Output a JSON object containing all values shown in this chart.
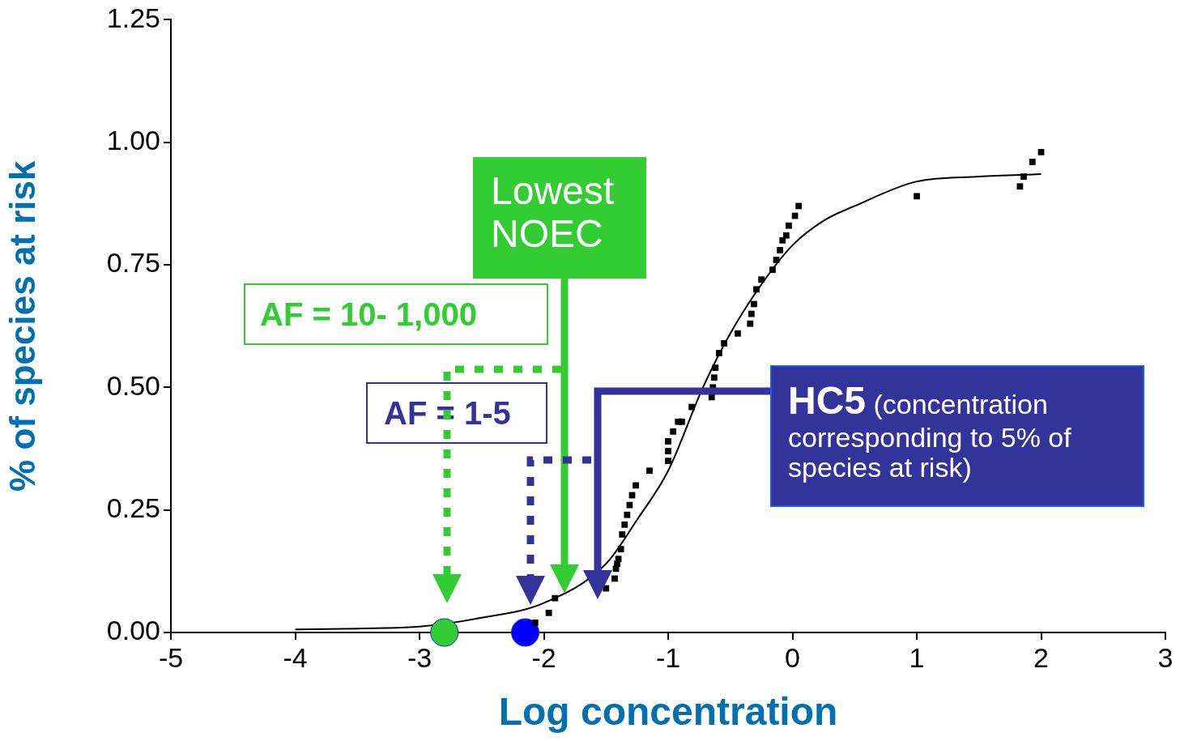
{
  "chart_data": {
    "type": "scatter",
    "xlabel": "Log concentration",
    "ylabel": "% of species at risk",
    "xlim": [
      -5,
      3
    ],
    "xticks": [
      -5,
      -4,
      -3,
      -2,
      -1,
      0,
      1,
      2,
      3
    ],
    "ylim": [
      0,
      1.25
    ],
    "yticks": [
      {
        "value": 0,
        "label": "0.00"
      },
      {
        "value": 0.25,
        "label": "0.25"
      },
      {
        "value": 0.5,
        "label": "0.50"
      },
      {
        "value": 0.75,
        "label": "0.75"
      },
      {
        "value": 1,
        "label": "1.00"
      },
      {
        "value": 1.25,
        "label": "1.25"
      }
    ],
    "grid": false,
    "legend": false,
    "marker": "square",
    "series": [
      {
        "color": "#000000",
        "x": [
          -2.07,
          -1.96,
          -1.91,
          -1.5,
          -1.43,
          -1.42,
          -1.41,
          -1.4,
          -1.38,
          -1.37,
          -1.35,
          -1.33,
          -1.31,
          -1.29,
          -1.26,
          -1.15,
          -1.0,
          -1.0,
          -1.0,
          -0.96,
          -0.92,
          -0.89,
          -0.81,
          -0.65,
          -0.64,
          -0.63,
          -0.62,
          -0.59,
          -0.55,
          -0.44,
          -0.34,
          -0.33,
          -0.31,
          -0.29,
          -0.25,
          -0.16,
          -0.13,
          -0.1,
          -0.08,
          -0.05,
          -0.03,
          0.02,
          0.05,
          1.0,
          1.83,
          1.86,
          1.93,
          2.0
        ],
        "values": [
          0.02,
          0.04,
          0.07,
          0.09,
          0.11,
          0.13,
          0.14,
          0.15,
          0.17,
          0.2,
          0.22,
          0.24,
          0.26,
          0.28,
          0.3,
          0.33,
          0.35,
          0.37,
          0.39,
          0.41,
          0.43,
          0.43,
          0.46,
          0.48,
          0.5,
          0.52,
          0.54,
          0.57,
          0.59,
          0.61,
          0.63,
          0.65,
          0.67,
          0.7,
          0.72,
          0.74,
          0.76,
          0.78,
          0.8,
          0.81,
          0.83,
          0.85,
          0.87,
          0.89,
          0.91,
          0.93,
          0.96,
          0.98
        ]
      },
      {
        "type": "line",
        "color": "#000000",
        "marker": "none",
        "x": [
          -4,
          -3.5,
          -3,
          -2.5,
          -2,
          -1.5,
          -1.25,
          -1,
          -0.72,
          -0.5,
          -0.25,
          0,
          0.25,
          0.5,
          1,
          1.5,
          2
        ],
        "values": [
          0.006,
          0.008,
          0.012,
          0.03,
          0.06,
          0.14,
          0.23,
          0.33,
          0.5,
          0.61,
          0.71,
          0.79,
          0.84,
          0.87,
          0.92,
          0.93,
          0.935
        ]
      },
      {
        "color": "#33cc33",
        "marker": "circle",
        "x": [
          -2.8
        ],
        "values": [
          0
        ]
      },
      {
        "color": "#0000ff",
        "marker": "circle",
        "x": [
          -2.15
        ],
        "values": [
          0
        ]
      }
    ],
    "annotations": [
      "Lowest NOEC",
      "AF = 10- 1,000",
      "AF = 1-5",
      "HC5 (concentration corresponding to 5% of species at risk)"
    ]
  }
}
